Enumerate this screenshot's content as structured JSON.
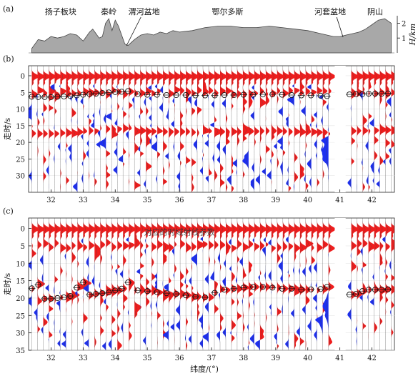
{
  "chart_data": [
    {
      "panel_label": "(a)",
      "type": "area",
      "xlim": [
        31.3,
        42.7
      ],
      "ylim": [
        0,
        2.5
      ],
      "yticks": [
        1,
        2
      ],
      "ylabel": "H/km",
      "region_labels": [
        {
          "text": "扬子板块",
          "x": 32.3
        },
        {
          "text": "秦岭",
          "x": 33.8
        },
        {
          "text": "渭河盆地",
          "x": 34.9
        },
        {
          "text": "鄂尔多斯",
          "x": 37.5
        },
        {
          "text": "河套盆地",
          "x": 40.7
        },
        {
          "text": "阴山",
          "x": 42.1
        }
      ],
      "x": [
        31.4,
        31.6,
        31.8,
        32.0,
        32.2,
        32.4,
        32.6,
        32.8,
        33.0,
        33.2,
        33.3,
        33.4,
        33.5,
        33.6,
        33.7,
        33.8,
        33.9,
        34.0,
        34.1,
        34.2,
        34.3,
        34.4,
        34.6,
        34.8,
        35.0,
        35.2,
        35.4,
        35.6,
        35.8,
        36.0,
        36.4,
        36.8,
        37.2,
        37.6,
        38.0,
        38.4,
        38.8,
        39.2,
        39.6,
        40.0,
        40.4,
        40.8,
        41.0,
        41.2,
        41.4,
        41.6,
        41.8,
        42.0,
        42.2,
        42.4,
        42.6
      ],
      "y": [
        0.3,
        0.9,
        0.8,
        1.1,
        1.0,
        1.1,
        1.3,
        1.2,
        0.8,
        1.4,
        1.6,
        1.3,
        1.0,
        1.1,
        2.0,
        2.3,
        1.5,
        2.2,
        1.8,
        1.2,
        0.6,
        0.5,
        0.9,
        1.2,
        1.3,
        1.2,
        1.4,
        1.3,
        1.5,
        1.4,
        1.5,
        1.7,
        1.8,
        1.8,
        1.7,
        1.7,
        1.8,
        1.7,
        1.6,
        1.5,
        1.3,
        1.1,
        1.1,
        1.2,
        1.3,
        1.4,
        1.6,
        1.9,
        2.2,
        2.3,
        2.0
      ]
    },
    {
      "panel_label": "(b)",
      "type": "scatter",
      "ylabel": "走时/s",
      "ylim": [
        35,
        -3
      ],
      "yticks": [
        0,
        5,
        10,
        15,
        20,
        25,
        30
      ],
      "xlim": [
        31.3,
        42.7
      ],
      "xticks": [
        32,
        33,
        34,
        35,
        36,
        37,
        38,
        39,
        40,
        41,
        42
      ],
      "picks_x": [
        31.4,
        31.6,
        31.8,
        32.0,
        32.2,
        32.4,
        32.6,
        32.8,
        33.0,
        33.2,
        33.4,
        33.6,
        33.8,
        34.0,
        34.2,
        34.4,
        34.7,
        35.0,
        35.3,
        35.6,
        35.9,
        36.2,
        36.5,
        36.8,
        37.1,
        37.4,
        37.7,
        38.0,
        38.3,
        38.6,
        38.9,
        39.2,
        39.5,
        39.8,
        40.1,
        40.4,
        40.6,
        41.3,
        41.5,
        41.7,
        41.9,
        42.1,
        42.3,
        42.5
      ],
      "picks_t": [
        6.3,
        6.4,
        6.4,
        6.4,
        6.3,
        6.2,
        6.1,
        5.9,
        5.7,
        5.5,
        5.4,
        5.2,
        5.0,
        4.9,
        4.8,
        4.6,
        5.5,
        5.7,
        5.7,
        5.8,
        5.8,
        5.8,
        5.9,
        5.9,
        5.9,
        5.8,
        5.8,
        5.7,
        5.7,
        5.6,
        5.6,
        5.7,
        5.8,
        5.9,
        5.9,
        6.0,
        6.1,
        5.6,
        5.5,
        5.5,
        5.4,
        5.4,
        5.4,
        5.3
      ],
      "reference_times": [
        5,
        17
      ]
    },
    {
      "panel_label": "(c)",
      "type": "scatter",
      "ylabel": "走时/s",
      "ylim": [
        35,
        -3
      ],
      "yticks": [
        0,
        5,
        10,
        15,
        20,
        25,
        30,
        35
      ],
      "xlim": [
        31.3,
        42.7
      ],
      "xticks": [
        32,
        33,
        34,
        35,
        36,
        37,
        38,
        39,
        40,
        41,
        42
      ],
      "xlabel": "纬度/(°)",
      "annotation": "对应的时域射线参数",
      "picks_x": [
        31.4,
        31.6,
        31.8,
        32.0,
        32.2,
        32.4,
        32.6,
        32.8,
        33.0,
        33.2,
        33.4,
        33.6,
        33.8,
        34.0,
        34.2,
        34.4,
        34.7,
        35.0,
        35.3,
        35.6,
        35.9,
        36.2,
        36.5,
        36.8,
        37.1,
        37.4,
        37.7,
        38.0,
        38.3,
        38.6,
        38.9,
        39.2,
        39.5,
        39.8,
        40.1,
        40.4,
        40.6,
        41.3,
        41.5,
        41.7,
        41.9,
        42.1,
        42.3,
        42.5
      ],
      "picks_t": [
        17.2,
        16.2,
        20.2,
        20.2,
        20.0,
        19.8,
        19.4,
        17.0,
        15.5,
        19.0,
        18.8,
        18.6,
        18.4,
        17.8,
        17.3,
        15.5,
        17.8,
        18.0,
        18.3,
        18.6,
        18.8,
        19.2,
        19.6,
        19.8,
        18.5,
        17.6,
        17.3,
        17.0,
        16.8,
        16.8,
        17.0,
        17.3,
        17.3,
        17.6,
        17.5,
        17.4,
        16.8,
        19.0,
        18.8,
        18.0,
        17.6,
        17.6,
        17.6,
        17.5
      ],
      "reference_times": [
        5,
        17
      ]
    }
  ]
}
